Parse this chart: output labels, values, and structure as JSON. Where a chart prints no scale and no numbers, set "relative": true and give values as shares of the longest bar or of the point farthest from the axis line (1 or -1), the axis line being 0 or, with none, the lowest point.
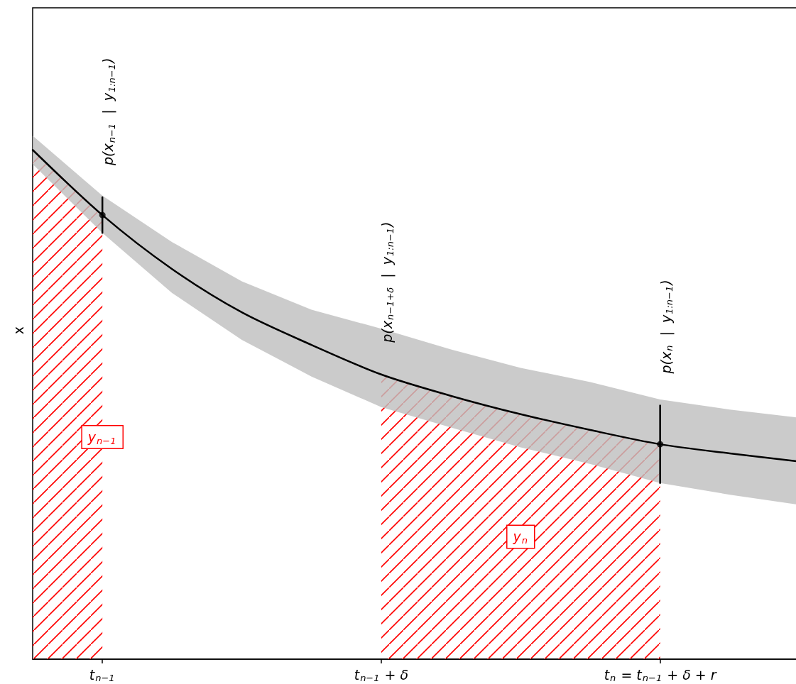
{
  "chart_data": {
    "type": "line",
    "ylabel": "x",
    "relative": true,
    "categories": [
      null,
      "t$_{n−1}$",
      null,
      null,
      null,
      "t$_{n−1}$ + δ",
      null,
      null,
      null,
      "t$_{n}$ = t$_{n−1}$ + δ + r",
      null,
      null
    ],
    "tick_labels": "x",
    "grid": false,
    "legend": false,
    "marker": "none",
    "line_style": "solid",
    "series": [
      {
        "color": "#000000",
        "values": [
          1,
          0.872,
          0.766,
          0.681,
          0.617,
          0.559,
          0.517,
          0.481,
          0.45,
          0.422,
          0.404,
          0.388
        ],
        "lower": [
          0.972,
          0.837,
          0.719,
          0.627,
          0.555,
          0.495,
          0.455,
          0.416,
          0.383,
          0.346,
          0.323,
          0.303
        ],
        "upper": [
          1.028,
          0.91,
          0.819,
          0.742,
          0.686,
          0.649,
          0.608,
          0.572,
          0.544,
          0.51,
          0.49,
          0.474
        ]
      },
      {
        "type": "area",
        "name": "y$_{n−1}$",
        "color": "#ff0000",
        "values": [
          1,
          0.872,
          null,
          null,
          null,
          null,
          null,
          null,
          null,
          null,
          null,
          null
        ]
      },
      {
        "type": "area",
        "name": "y$_{n}$",
        "color": "#ff0000",
        "values": [
          null,
          null,
          null,
          null,
          null,
          0.559,
          0.517,
          0.481,
          0.45,
          0.422,
          null,
          null
        ]
      },
      {
        "type": "scatter",
        "color": "#000000",
        "x": [
          "t$_{n−1}$",
          "t$_{n}$ = t$_{n−1}$ + δ + r"
        ],
        "values": [
          0.872,
          0.422
        ],
        "marker": "circle"
      },
      {
        "color": "#000000",
        "x": [
          "t$_{n−1}$",
          "t$_{n−1}$"
        ],
        "values": [
          0.837,
          0.907
        ]
      },
      {
        "color": "#000000",
        "x": [
          "t$_{n}$ = t$_{n−1}$ + δ + r",
          "t$_{n}$ = t$_{n−1}$ + δ + r"
        ],
        "values": [
          0.346,
          0.498
        ]
      }
    ],
    "annotations": [
      "p(x$_{n−1}$  |  y$_{1:n−1}$)",
      "p(x$_{n−1+δ}$  |  y$_{1:n−1}$)",
      "p(x$_{n}$  |  y$_{1:n−1}$)"
    ]
  }
}
